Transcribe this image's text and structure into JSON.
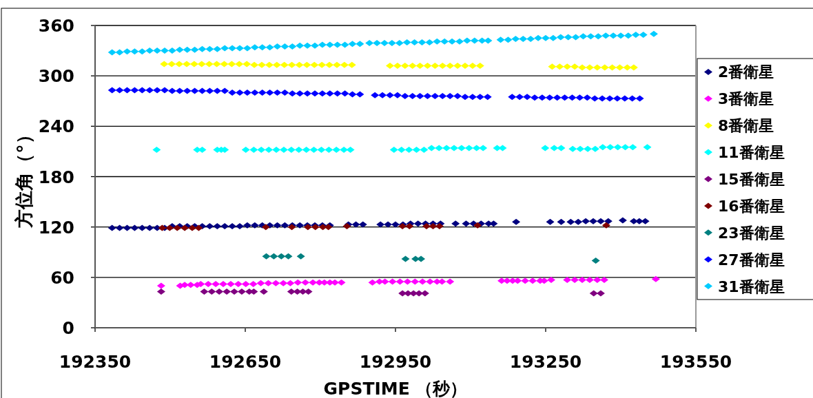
{
  "chart_data": {
    "type": "scatter",
    "xlabel": "GPSTIME （秒）",
    "ylabel": "方位角（°）",
    "xlim": [
      192350,
      193550
    ],
    "xticks": [
      192350,
      192650,
      192950,
      193250,
      193550
    ],
    "ylim": [
      0,
      360
    ],
    "yticks": [
      0,
      60,
      120,
      180,
      240,
      300,
      360
    ],
    "grid": "y",
    "legend": "right",
    "marker": "diamond",
    "series": [
      {
        "name": "2番衛星",
        "color": "#000080",
        "x": [
          192384,
          192399,
          192414,
          192429,
          192444,
          192459,
          192474,
          192489,
          192504,
          192519,
          192534,
          192549,
          192564,
          192579,
          192594,
          192609,
          192624,
          192639,
          192654,
          192669,
          192684,
          192699,
          192714,
          192729,
          192744,
          192759,
          192774,
          192789,
          192804,
          192819,
          192856,
          192871,
          192885,
          192920,
          192935,
          192950,
          192965,
          192980,
          192995,
          193010,
          193025,
          193040,
          193070,
          193091,
          193106,
          193121,
          193136,
          193146,
          193191,
          193259,
          193281,
          193300,
          193315,
          193330,
          193345,
          193360,
          193375,
          193404,
          193426,
          193437,
          193449
        ],
        "values": [
          119,
          119,
          119,
          119,
          119,
          119,
          119,
          119,
          121,
          121,
          121,
          121,
          121,
          121,
          121,
          121,
          121,
          121,
          122,
          122,
          122,
          122,
          122,
          122,
          122,
          122,
          122,
          122,
          122,
          122,
          123,
          123,
          123,
          123,
          123,
          123,
          123,
          124,
          124,
          124,
          124,
          124,
          124,
          124,
          124,
          124,
          124,
          124,
          126,
          126,
          126,
          126,
          126,
          127,
          127,
          127,
          127,
          128,
          127,
          127,
          127
        ]
      },
      {
        "name": "3番衛星",
        "color": "#ff00ff",
        "x": [
          192482,
          192520,
          192529,
          192541,
          192554,
          192561,
          192576,
          192591,
          192606,
          192621,
          192636,
          192651,
          192666,
          192681,
          192696,
          192711,
          192726,
          192740,
          192755,
          192770,
          192785,
          192798,
          192808,
          192819,
          192829,
          192842,
          192904,
          192918,
          192929,
          192944,
          192959,
          192974,
          192989,
          193004,
          193019,
          193033,
          193043,
          193059,
          193162,
          193173,
          193184,
          193194,
          193209,
          193224,
          193239,
          193247,
          193261,
          193293,
          193308,
          193323,
          193338,
          193353,
          193367,
          193470
        ],
        "values": [
          50,
          50,
          51,
          51,
          51,
          52,
          52,
          52,
          52,
          52,
          52,
          52,
          52,
          53,
          53,
          53,
          53,
          53,
          54,
          54,
          54,
          54,
          54,
          54,
          54,
          54,
          54,
          55,
          55,
          55,
          55,
          55,
          55,
          55,
          55,
          55,
          55,
          55,
          56,
          56,
          56,
          56,
          56,
          56,
          56,
          56,
          57,
          57,
          57,
          57,
          57,
          57,
          57,
          58
        ]
      },
      {
        "name": "8番衛星",
        "color": "#ffff00",
        "x": [
          192488,
          192503,
          192518,
          192533,
          192548,
          192563,
          192578,
          192593,
          192608,
          192623,
          192638,
          192653,
          192668,
          192683,
          192698,
          192713,
          192728,
          192743,
          192758,
          192773,
          192788,
          192803,
          192818,
          192833,
          192848,
          192863,
          192939,
          192954,
          192969,
          192984,
          192999,
          193014,
          193029,
          193044,
          193059,
          193074,
          193089,
          193104,
          193119,
          193263,
          193278,
          193293,
          193308,
          193323,
          193338,
          193353,
          193368,
          193383,
          193398,
          193413,
          193426
        ],
        "values": [
          314,
          314,
          314,
          314,
          314,
          314,
          314,
          314,
          314,
          314,
          314,
          314,
          313,
          313,
          313,
          313,
          313,
          313,
          313,
          313,
          313,
          313,
          313,
          313,
          313,
          313,
          312,
          312,
          312,
          312,
          312,
          312,
          312,
          312,
          312,
          312,
          312,
          312,
          312,
          311,
          311,
          311,
          311,
          310,
          310,
          310,
          310,
          310,
          310,
          310,
          310
        ]
      },
      {
        "name": "11番衛星",
        "color": "#00ffff",
        "x": [
          192473,
          192554,
          192564,
          192594,
          192602,
          192609,
          192651,
          192667,
          192682,
          192697,
          192712,
          192727,
          192742,
          192757,
          192772,
          192787,
          192802,
          192817,
          192832,
          192847,
          192860,
          192947,
          192962,
          192977,
          192992,
          193007,
          193022,
          193037,
          193052,
          193067,
          193082,
          193097,
          193112,
          193125,
          193153,
          193164,
          193249,
          193267,
          193281,
          193304,
          193319,
          193334,
          193349,
          193364,
          193379,
          193394,
          193409,
          193424,
          193453
        ],
        "values": [
          212,
          212,
          212,
          212,
          212,
          212,
          212,
          212,
          212,
          212,
          212,
          212,
          212,
          212,
          212,
          212,
          212,
          212,
          212,
          212,
          212,
          212,
          212,
          212,
          212,
          212,
          214,
          214,
          214,
          214,
          214,
          214,
          214,
          214,
          214,
          214,
          214,
          214,
          214,
          213,
          213,
          213,
          213,
          215,
          215,
          215,
          215,
          215,
          215
        ]
      },
      {
        "name": "15番衛星",
        "color": "#800080",
        "x": [
          192482,
          192568,
          192583,
          192598,
          192613,
          192628,
          192643,
          192658,
          192667,
          192687,
          192742,
          192754,
          192765,
          192776,
          192964,
          192975,
          192986,
          192997,
          193009,
          193346,
          193360
        ],
        "values": [
          43,
          43,
          43,
          43,
          43,
          43,
          43,
          43,
          43,
          43,
          43,
          43,
          43,
          43,
          41,
          41,
          41,
          41,
          41,
          41,
          41
        ]
      },
      {
        "name": "16番衛星",
        "color": "#800000",
        "x": [
          192484,
          192499,
          192514,
          192529,
          192544,
          192557,
          192691,
          192743,
          192775,
          192790,
          192805,
          192816,
          192853,
          192964,
          192978,
          193012,
          193025,
          193038,
          193114,
          193371
        ],
        "values": [
          119,
          119,
          119,
          119,
          119,
          119,
          120,
          120,
          120,
          120,
          120,
          120,
          121,
          121,
          121,
          121,
          121,
          121,
          122,
          122
        ]
      },
      {
        "name": "23番衛星",
        "color": "#008080",
        "x": [
          192692,
          192707,
          192722,
          192736,
          192761,
          192970,
          192990,
          193001,
          193350
        ],
        "values": [
          85,
          85,
          85,
          85,
          85,
          82,
          82,
          82,
          80
        ]
      },
      {
        "name": "27番衛星",
        "color": "#0000ff",
        "x": [
          192384,
          192399,
          192414,
          192429,
          192444,
          192459,
          192474,
          192489,
          192504,
          192519,
          192534,
          192549,
          192564,
          192579,
          192594,
          192609,
          192624,
          192639,
          192654,
          192669,
          192684,
          192699,
          192714,
          192729,
          192744,
          192759,
          192774,
          192789,
          192804,
          192819,
          192834,
          192849,
          192864,
          192879,
          192909,
          192924,
          192939,
          192954,
          192969,
          192984,
          192999,
          193014,
          193029,
          193044,
          193059,
          193074,
          193089,
          193104,
          193119,
          193134,
          193183,
          193198,
          193213,
          193228,
          193243,
          193258,
          193273,
          193288,
          193303,
          193318,
          193333,
          193348,
          193363,
          193378,
          193393,
          193408,
          193423,
          193438
        ],
        "values": [
          283,
          283,
          283,
          283,
          283,
          283,
          283,
          283,
          282,
          282,
          282,
          282,
          282,
          282,
          282,
          282,
          280,
          280,
          280,
          280,
          280,
          280,
          280,
          280,
          279,
          279,
          279,
          279,
          279,
          279,
          279,
          279,
          278,
          278,
          277,
          277,
          277,
          277,
          276,
          276,
          276,
          276,
          276,
          276,
          276,
          276,
          275,
          275,
          275,
          275,
          275,
          275,
          275,
          274,
          274,
          274,
          274,
          274,
          274,
          274,
          274,
          273,
          273,
          273,
          273,
          273,
          273,
          273
        ]
      },
      {
        "name": "31番衛星",
        "color": "#00ccff",
        "x": [
          192384,
          192399,
          192414,
          192429,
          192444,
          192459,
          192474,
          192489,
          192504,
          192519,
          192534,
          192549,
          192564,
          192579,
          192594,
          192609,
          192624,
          192639,
          192654,
          192669,
          192684,
          192699,
          192714,
          192729,
          192744,
          192759,
          192774,
          192789,
          192804,
          192819,
          192834,
          192849,
          192864,
          192879,
          192898,
          192913,
          192928,
          192943,
          192958,
          192973,
          192988,
          193003,
          193018,
          193033,
          193048,
          193063,
          193078,
          193093,
          193108,
          193123,
          193135,
          193160,
          193175,
          193190,
          193205,
          193220,
          193235,
          193250,
          193265,
          193280,
          193295,
          193310,
          193325,
          193340,
          193355,
          193370,
          193385,
          193400,
          193415,
          193430,
          193445,
          193466
        ],
        "values": [
          328,
          328,
          329,
          329,
          329,
          330,
          330,
          330,
          330,
          331,
          331,
          331,
          332,
          332,
          332,
          333,
          333,
          333,
          333,
          334,
          334,
          334,
          335,
          335,
          335,
          336,
          336,
          336,
          337,
          337,
          337,
          337,
          338,
          338,
          339,
          339,
          339,
          339,
          339,
          340,
          340,
          340,
          340,
          341,
          341,
          341,
          341,
          342,
          342,
          342,
          342,
          343,
          343,
          344,
          344,
          344,
          345,
          345,
          345,
          346,
          346,
          346,
          347,
          347,
          347,
          348,
          348,
          348,
          348,
          349,
          349,
          350
        ]
      }
    ]
  }
}
